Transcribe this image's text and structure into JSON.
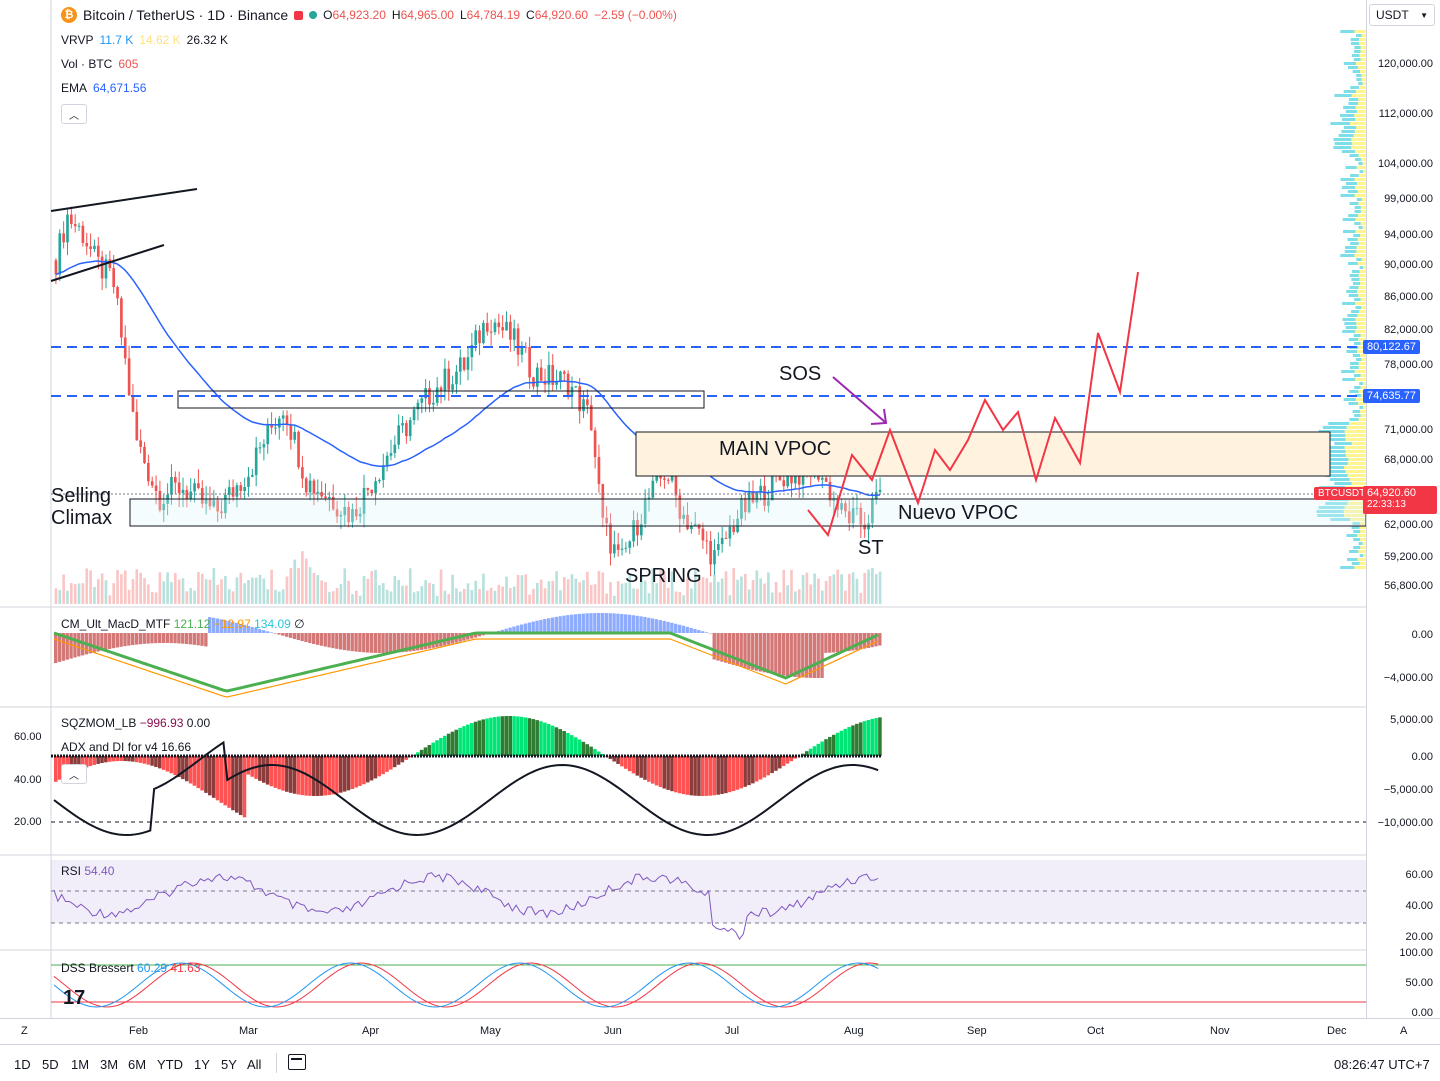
{
  "header": {
    "symbol": "Bitcoin / TetherUS · 1D · Binance",
    "open_label": "O",
    "open": "64,923.20",
    "high_label": "H",
    "high": "64,965.00",
    "low_label": "L",
    "low": "64,784.19",
    "close_label": "C",
    "close": "64,920.60",
    "change": "−2.59 (−0.00%)",
    "icon": "bitcoin-icon"
  },
  "legends": {
    "vrvp_name": "VRVP",
    "vrvp_v1": "11.7 K",
    "vrvp_v2": "14.62 K",
    "vrvp_v3": "26.32 K",
    "vol_name": "Vol · BTC",
    "vol_value": "605",
    "ema_name": "EMA",
    "ema_value": "64,671.56"
  },
  "currency": {
    "label": "USDT"
  },
  "price_axis": {
    "labels": [
      "120,000.00",
      "112,000.00",
      "104,000.00",
      "99,000.00",
      "94,000.00",
      "90,000.00",
      "86,000.00",
      "82,000.00",
      "78,000.00",
      "71,000.00",
      "68,000.00",
      "62,000.00",
      "59,200.00",
      "56,800.00"
    ],
    "tag_80k": "80,122.67",
    "tag_74k": "74,635.77",
    "tag_symbol": "BTCUSDT",
    "tag_price": "64,920.60",
    "tag_countdown": "22:33:13"
  },
  "annotations": {
    "sos": "SOS",
    "main_vpoc": "MAIN VPOC",
    "nuevo_vpoc": "Nuevo VPOC",
    "selling_climax_1": "Selling",
    "selling_climax_2": "Climax",
    "spring": "SPRING",
    "st": "ST"
  },
  "macd": {
    "name": "CM_Ult_MacD_MTF",
    "v1": "121.12",
    "v2": "−12.97",
    "v3": "134.09",
    "v4": "∅",
    "axis": [
      "0.00",
      "−4,000.00"
    ]
  },
  "sqz": {
    "name": "SQZMOM_LB",
    "v1": "−996.93",
    "v2": "0.00",
    "adx_name": "ADX and DI for v4",
    "adx_value": "16.66",
    "axis_right": [
      "5,000.00",
      "0.00",
      "−5,000.00",
      "−10,000.00"
    ],
    "axis_left": [
      "60.00",
      "40.00",
      "20.00"
    ]
  },
  "rsi": {
    "name": "RSI",
    "value": "54.40",
    "axis": [
      "60.00",
      "40.00",
      "20.00"
    ]
  },
  "dss": {
    "name": "DSS Bressert",
    "v1": "60.29",
    "v2": "41.63",
    "axis": [
      "100.00",
      "50.00",
      "0.00"
    ]
  },
  "time_axis": {
    "labels": [
      "Feb",
      "Mar",
      "Apr",
      "May",
      "Jun",
      "Jul",
      "Aug",
      "Sep",
      "Oct",
      "Nov",
      "Dec"
    ],
    "left_btn": "Z",
    "right_btn": "A"
  },
  "bottom_bar": {
    "ranges": [
      "1D",
      "5D",
      "1M",
      "3M",
      "6M",
      "YTD",
      "1Y",
      "5Y",
      "All"
    ],
    "clock": "08:26:47 UTC+7",
    "calendar_icon": "calendar-range-icon"
  },
  "colors": {
    "up": "#26a69a",
    "down": "#ef5350",
    "ema": "#2962ff",
    "projection": "#f23645",
    "vpoc_fill": "#fff3e0",
    "dashed": "#2962ff",
    "rsi_band": "#7e57c2"
  }
}
